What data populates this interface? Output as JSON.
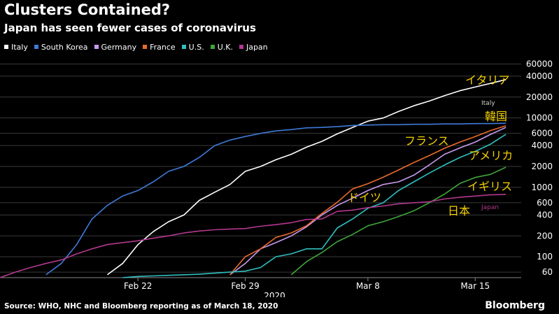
{
  "title": "Clusters Contained?",
  "subtitle": "Japan has seen fewer cases of coronavirus",
  "source": "Source: WHO, NHC and Bloomberg reporting as of March 18, 2020",
  "brand": "Bloomberg",
  "chart_data": {
    "type": "line",
    "yscale": "log",
    "xlabel": "2020",
    "x_start": "2020-02-13",
    "x_end": "2020-03-18",
    "ylim": [
      50,
      65000
    ],
    "grid": true,
    "legend_placement": "top-left",
    "x_ticks": [
      {
        "date": "2020-02-22",
        "label": "Feb 22"
      },
      {
        "date": "2020-02-29",
        "label": "Feb 29"
      },
      {
        "date": "2020-03-08",
        "label": "Mar 8"
      },
      {
        "date": "2020-03-15",
        "label": "Mar 15"
      }
    ],
    "y_ticks": [
      60,
      100,
      200,
      400,
      600,
      1000,
      2000,
      4000,
      6000,
      10000,
      20000,
      40000,
      60000
    ],
    "y_tick_labels": [
      "60",
      "100",
      "200",
      "400",
      "600",
      "1000",
      "2000",
      "4000",
      "6000",
      "10000",
      "20000",
      "40000",
      "60000"
    ],
    "series": [
      {
        "name": "Italy",
        "color": "#ffffff",
        "annotation": "イタリア",
        "small_label": "Italy",
        "x": [
          "2020-02-20",
          "2020-02-21",
          "2020-02-22",
          "2020-02-23",
          "2020-02-24",
          "2020-02-25",
          "2020-02-26",
          "2020-02-27",
          "2020-02-28",
          "2020-02-29",
          "2020-03-01",
          "2020-03-02",
          "2020-03-03",
          "2020-03-04",
          "2020-03-05",
          "2020-03-06",
          "2020-03-07",
          "2020-03-08",
          "2020-03-09",
          "2020-03-10",
          "2020-03-11",
          "2020-03-12",
          "2020-03-13",
          "2020-03-14",
          "2020-03-15",
          "2020-03-16",
          "2020-03-17"
        ],
        "y": [
          55,
          80,
          150,
          230,
          320,
          400,
          650,
          850,
          1100,
          1700,
          2000,
          2500,
          3000,
          3800,
          4600,
          5900,
          7300,
          9000,
          10000,
          12400,
          15000,
          17500,
          21000,
          24700,
          27900,
          31500,
          35700
        ]
      },
      {
        "name": "South Korea",
        "color": "#3f7ad8",
        "annotation": "韓国",
        "x": [
          "2020-02-16",
          "2020-02-17",
          "2020-02-18",
          "2020-02-19",
          "2020-02-20",
          "2020-02-21",
          "2020-02-22",
          "2020-02-23",
          "2020-02-24",
          "2020-02-25",
          "2020-02-26",
          "2020-02-27",
          "2020-02-28",
          "2020-02-29",
          "2020-03-01",
          "2020-03-02",
          "2020-03-03",
          "2020-03-04",
          "2020-03-05",
          "2020-03-06",
          "2020-03-07",
          "2020-03-08",
          "2020-03-09",
          "2020-03-10",
          "2020-03-11",
          "2020-03-12",
          "2020-03-13",
          "2020-03-14",
          "2020-03-15",
          "2020-03-16",
          "2020-03-17"
        ],
        "y": [
          55,
          80,
          150,
          350,
          550,
          750,
          900,
          1200,
          1700,
          2000,
          2700,
          4000,
          4800,
          5400,
          6000,
          6500,
          6800,
          7200,
          7300,
          7500,
          7800,
          7900,
          8000,
          8000,
          8100,
          8100,
          8200,
          8200,
          8300,
          8300,
          8400
        ]
      },
      {
        "name": "Germany",
        "color": "#c99aef",
        "annotation": "ドイツ",
        "x": [
          "2020-02-28",
          "2020-02-29",
          "2020-03-01",
          "2020-03-02",
          "2020-03-03",
          "2020-03-04",
          "2020-03-05",
          "2020-03-06",
          "2020-03-07",
          "2020-03-08",
          "2020-03-09",
          "2020-03-10",
          "2020-03-11",
          "2020-03-12",
          "2020-03-13",
          "2020-03-14",
          "2020-03-15",
          "2020-03-16",
          "2020-03-17"
        ],
        "y": [
          55,
          80,
          130,
          160,
          200,
          270,
          400,
          550,
          700,
          900,
          1100,
          1200,
          1500,
          2100,
          3000,
          3700,
          4500,
          5800,
          7300
        ]
      },
      {
        "name": "France",
        "color": "#ea6a2c",
        "annotation": "フランス",
        "x": [
          "2020-02-28",
          "2020-02-29",
          "2020-03-01",
          "2020-03-02",
          "2020-03-03",
          "2020-03-04",
          "2020-03-05",
          "2020-03-06",
          "2020-03-07",
          "2020-03-08",
          "2020-03-09",
          "2020-03-10",
          "2020-03-11",
          "2020-03-12",
          "2020-03-13",
          "2020-03-14",
          "2020-03-15",
          "2020-03-16",
          "2020-03-17"
        ],
        "y": [
          55,
          100,
          130,
          190,
          220,
          280,
          420,
          610,
          950,
          1130,
          1400,
          1780,
          2280,
          2870,
          3660,
          4500,
          5400,
          6600,
          7700
        ]
      },
      {
        "name": "U.S.",
        "color": "#30bfbf",
        "annotation": "アメリカ",
        "x": [
          "2020-02-21",
          "2020-02-22",
          "2020-02-23",
          "2020-02-24",
          "2020-02-25",
          "2020-02-26",
          "2020-02-27",
          "2020-02-28",
          "2020-02-29",
          "2020-03-01",
          "2020-03-02",
          "2020-03-03",
          "2020-03-04",
          "2020-03-05",
          "2020-03-06",
          "2020-03-07",
          "2020-03-08",
          "2020-03-09",
          "2020-03-10",
          "2020-03-11",
          "2020-03-12",
          "2020-03-13",
          "2020-03-14",
          "2020-03-15",
          "2020-03-16",
          "2020-03-17"
        ],
        "y": [
          50,
          52,
          53,
          54,
          55,
          56,
          58,
          60,
          62,
          70,
          100,
          110,
          130,
          130,
          260,
          350,
          500,
          600,
          900,
          1200,
          1600,
          2100,
          2700,
          3300,
          4200,
          5800
        ]
      },
      {
        "name": "U.K.",
        "color": "#3fa53a",
        "annotation": "イギリス",
        "x": [
          "2020-03-03",
          "2020-03-04",
          "2020-03-05",
          "2020-03-06",
          "2020-03-07",
          "2020-03-08",
          "2020-03-09",
          "2020-03-10",
          "2020-03-11",
          "2020-03-12",
          "2020-03-13",
          "2020-03-14",
          "2020-03-15",
          "2020-03-16",
          "2020-03-17"
        ],
        "y": [
          55,
          85,
          115,
          165,
          210,
          280,
          320,
          380,
          460,
          600,
          800,
          1140,
          1390,
          1540,
          1950
        ]
      },
      {
        "name": "Japan",
        "color": "#b3388f",
        "annotation": "日本",
        "small_label": "Japan",
        "x": [
          "2020-02-13",
          "2020-02-14",
          "2020-02-15",
          "2020-02-16",
          "2020-02-17",
          "2020-02-18",
          "2020-02-19",
          "2020-02-20",
          "2020-02-21",
          "2020-02-22",
          "2020-02-23",
          "2020-02-24",
          "2020-02-25",
          "2020-02-26",
          "2020-02-27",
          "2020-02-28",
          "2020-02-29",
          "2020-03-01",
          "2020-03-02",
          "2020-03-03",
          "2020-03-04",
          "2020-03-05",
          "2020-03-06",
          "2020-03-07",
          "2020-03-08",
          "2020-03-09",
          "2020-03-10",
          "2020-03-11",
          "2020-03-12",
          "2020-03-13",
          "2020-03-14",
          "2020-03-15",
          "2020-03-16",
          "2020-03-17"
        ],
        "y": [
          50,
          60,
          70,
          80,
          90,
          110,
          130,
          150,
          160,
          170,
          185,
          200,
          220,
          235,
          245,
          250,
          255,
          275,
          290,
          310,
          345,
          350,
          450,
          470,
          510,
          540,
          580,
          600,
          620,
          680,
          720,
          750,
          780,
          790
        ]
      }
    ]
  }
}
